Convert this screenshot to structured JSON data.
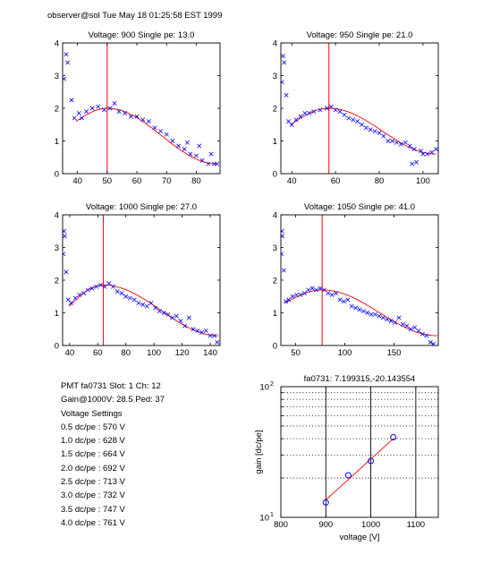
{
  "header": "observer@sol  Tue May 18 01:25:58 EST 1999",
  "info": {
    "line1": "PMT fa0731 Slot: 1 Ch: 12",
    "line2": "Gain@1000V: 28.5 Ped: 37",
    "line3": "Voltage Settings",
    "settings": [
      "0.5 dc/pe : 570 V",
      "1.0 dc/pe : 628 V",
      "1.5 dc/pe : 664 V",
      "2.0 dc/pe : 692 V",
      "2.5 dc/pe : 713 V",
      "3.0 dc/pe : 732 V",
      "3.5 dc/pe : 747 V",
      "4.0 dc/pe : 761 V"
    ]
  },
  "colors": {
    "data": "#0000ff",
    "fit": "#ff0000",
    "axis": "#000000"
  },
  "chart_data": [
    {
      "type": "scatter",
      "title": "Voltage: 900 Single pe: 13.0",
      "xlim": [
        35,
        88
      ],
      "ylim": [
        0,
        4
      ],
      "xticks": [
        40,
        50,
        60,
        70,
        80
      ],
      "yticks": [
        0,
        1,
        2,
        3,
        4
      ],
      "vline": 50,
      "peak": {
        "x": 50,
        "y": 2.0
      },
      "left_y": 1.6,
      "right_y": 0.3,
      "points": [
        [
          35.5,
          2.9
        ],
        [
          36.2,
          3.65
        ],
        [
          36.7,
          3.4
        ],
        [
          38,
          2.25
        ],
        [
          39,
          1.7
        ],
        [
          40.5,
          1.85
        ],
        [
          41.5,
          1.7
        ],
        [
          43,
          1.9
        ],
        [
          45,
          2.0
        ],
        [
          47,
          2.05
        ],
        [
          49,
          1.95
        ],
        [
          51,
          2.0
        ],
        [
          52.5,
          2.15
        ],
        [
          54,
          1.9
        ],
        [
          56,
          1.85
        ],
        [
          58,
          1.75
        ],
        [
          60,
          1.75
        ],
        [
          62,
          1.65
        ],
        [
          64,
          1.6
        ],
        [
          66,
          1.4
        ],
        [
          68,
          1.3
        ],
        [
          70,
          1.2
        ],
        [
          72,
          1.0
        ],
        [
          74,
          0.85
        ],
        [
          76,
          0.75
        ],
        [
          77,
          0.95
        ],
        [
          78,
          0.6
        ],
        [
          80,
          0.55
        ],
        [
          81,
          0.85
        ],
        [
          82,
          0.4
        ],
        [
          84,
          0.3
        ],
        [
          85,
          0.6
        ],
        [
          86,
          0.3
        ],
        [
          87,
          0.3
        ]
      ]
    },
    {
      "type": "scatter",
      "title": "Voltage: 950 Single pe: 21.0",
      "xlim": [
        35,
        107
      ],
      "ylim": [
        0,
        4
      ],
      "xticks": [
        40,
        60,
        80,
        100
      ],
      "yticks": [
        0,
        1,
        2,
        3,
        4
      ],
      "vline": 57,
      "peak": {
        "x": 57,
        "y": 2.0
      },
      "left_y": 1.5,
      "right_y": 0.6,
      "points": [
        [
          35.5,
          2.8
        ],
        [
          36,
          3.6
        ],
        [
          36.5,
          3.4
        ],
        [
          37.5,
          2.4
        ],
        [
          38.5,
          1.6
        ],
        [
          40,
          1.5
        ],
        [
          42,
          1.65
        ],
        [
          44,
          1.75
        ],
        [
          46,
          1.85
        ],
        [
          48,
          1.85
        ],
        [
          50,
          1.9
        ],
        [
          53,
          1.95
        ],
        [
          56,
          2.0
        ],
        [
          58,
          2.05
        ],
        [
          60,
          1.95
        ],
        [
          62,
          1.9
        ],
        [
          64,
          1.8
        ],
        [
          66,
          1.7
        ],
        [
          68,
          1.65
        ],
        [
          70,
          1.6
        ],
        [
          72,
          1.5
        ],
        [
          74,
          1.4
        ],
        [
          76,
          1.35
        ],
        [
          78,
          1.3
        ],
        [
          80,
          1.25
        ],
        [
          82,
          1.15
        ],
        [
          84,
          1.0
        ],
        [
          86,
          1.0
        ],
        [
          88,
          0.95
        ],
        [
          90,
          0.9
        ],
        [
          92,
          0.95
        ],
        [
          94,
          0.85
        ],
        [
          95,
          0.3
        ],
        [
          96,
          0.75
        ],
        [
          97,
          0.35
        ],
        [
          99,
          0.7
        ],
        [
          100,
          0.6
        ],
        [
          102,
          0.6
        ],
        [
          104,
          0.65
        ],
        [
          106,
          0.75
        ]
      ]
    },
    {
      "type": "scatter",
      "title": "Voltage: 1000 Single pe: 27.0",
      "xlim": [
        35,
        147
      ],
      "ylim": [
        0,
        4
      ],
      "xticks": [
        40,
        60,
        80,
        100,
        120,
        140
      ],
      "yticks": [
        0,
        1,
        2,
        3,
        4
      ],
      "vline": 64,
      "peak": {
        "x": 64,
        "y": 1.85
      },
      "left_y": 1.2,
      "right_y": 0.3,
      "points": [
        [
          35.5,
          2.8
        ],
        [
          36,
          3.5
        ],
        [
          36.5,
          3.35
        ],
        [
          37.5,
          2.25
        ],
        [
          39,
          1.4
        ],
        [
          41,
          1.3
        ],
        [
          44,
          1.45
        ],
        [
          47,
          1.55
        ],
        [
          50,
          1.6
        ],
        [
          53,
          1.7
        ],
        [
          56,
          1.75
        ],
        [
          59,
          1.8
        ],
        [
          62,
          1.85
        ],
        [
          65,
          1.8
        ],
        [
          68,
          1.9
        ],
        [
          71,
          1.8
        ],
        [
          74,
          1.65
        ],
        [
          77,
          1.6
        ],
        [
          80,
          1.5
        ],
        [
          83,
          1.45
        ],
        [
          86,
          1.4
        ],
        [
          89,
          1.3
        ],
        [
          92,
          1.25
        ],
        [
          95,
          1.2
        ],
        [
          98,
          1.3
        ],
        [
          101,
          1.15
        ],
        [
          104,
          1.05
        ],
        [
          107,
          1.0
        ],
        [
          110,
          0.95
        ],
        [
          113,
          0.85
        ],
        [
          116,
          0.9
        ],
        [
          119,
          0.75
        ],
        [
          122,
          0.6
        ],
        [
          125,
          0.85
        ],
        [
          128,
          0.5
        ],
        [
          131,
          0.45
        ],
        [
          134,
          0.4
        ],
        [
          137,
          0.45
        ],
        [
          140,
          0.3
        ],
        [
          143,
          0.3
        ],
        [
          145,
          0.1
        ]
      ]
    },
    {
      "type": "scatter",
      "title": "Voltage: 1050 Single pe: 41.0",
      "xlim": [
        35,
        195
      ],
      "ylim": [
        0,
        4
      ],
      "xticks": [
        50,
        100,
        150
      ],
      "yticks": [
        0,
        1,
        2,
        3,
        4
      ],
      "vline": 77,
      "peak": {
        "x": 77,
        "y": 1.7
      },
      "left_y": 1.3,
      "right_y": 0.3,
      "points": [
        [
          35.5,
          2.8
        ],
        [
          36,
          3.5
        ],
        [
          36.5,
          3.35
        ],
        [
          38,
          2.3
        ],
        [
          40,
          1.35
        ],
        [
          43,
          1.4
        ],
        [
          47,
          1.5
        ],
        [
          51,
          1.55
        ],
        [
          55,
          1.55
        ],
        [
          59,
          1.6
        ],
        [
          63,
          1.7
        ],
        [
          67,
          1.75
        ],
        [
          71,
          1.7
        ],
        [
          75,
          1.75
        ],
        [
          79,
          1.7
        ],
        [
          83,
          1.6
        ],
        [
          87,
          1.55
        ],
        [
          91,
          1.6
        ],
        [
          95,
          1.4
        ],
        [
          99,
          1.35
        ],
        [
          103,
          1.4
        ],
        [
          107,
          1.2
        ],
        [
          111,
          1.15
        ],
        [
          115,
          1.1
        ],
        [
          119,
          1.05
        ],
        [
          123,
          1.0
        ],
        [
          127,
          0.95
        ],
        [
          131,
          0.95
        ],
        [
          135,
          0.9
        ],
        [
          139,
          0.85
        ],
        [
          143,
          0.8
        ],
        [
          147,
          0.75
        ],
        [
          151,
          0.7
        ],
        [
          155,
          0.85
        ],
        [
          159,
          0.65
        ],
        [
          163,
          0.6
        ],
        [
          167,
          0.5
        ],
        [
          171,
          0.55
        ],
        [
          175,
          0.45
        ],
        [
          179,
          0.35
        ],
        [
          183,
          0.3
        ],
        [
          187,
          0.1
        ],
        [
          190,
          0.05
        ]
      ]
    },
    {
      "type": "line",
      "title": "fa0731: 7.199315,-20.143554",
      "xlabel": "voltage [V]",
      "ylabel": "gain [dc/pe]",
      "xlim": [
        800,
        1150
      ],
      "ylim": [
        10,
        100
      ],
      "yscale": "log",
      "xticks": [
        800,
        900,
        1000,
        1100
      ],
      "yticks": [
        {
          "v": 10,
          "base": "10",
          "exp": "1"
        },
        {
          "v": 100,
          "base": "10",
          "exp": "2"
        }
      ],
      "vlines": [
        900,
        1000,
        1100
      ],
      "hgrid": [
        20,
        30,
        40,
        50,
        60,
        70,
        80,
        90
      ],
      "points": [
        [
          900,
          13.0
        ],
        [
          950,
          21.0
        ],
        [
          1000,
          27.0
        ],
        [
          1050,
          41.0
        ]
      ],
      "fit": [
        [
          900,
          13.6
        ],
        [
          1050,
          40.0
        ]
      ]
    }
  ]
}
